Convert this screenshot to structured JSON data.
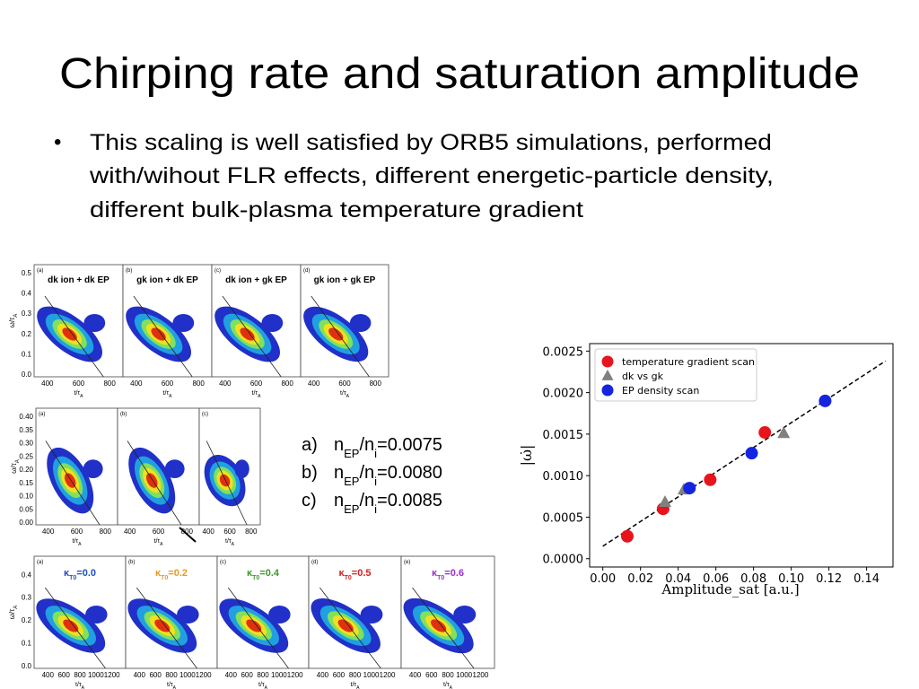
{
  "header": {
    "title": "Chirping rate and saturation amplitude"
  },
  "bullet": {
    "marker": "•",
    "lines": [
      "This scaling is well satisfied by ORB5 simulations, performed",
      "with/wihout FLR effects, different energetic-particle density,",
      "different bulk-plasma temperature gradient"
    ]
  },
  "figure_rows": [
    {
      "ylabel": "ω/τ",
      "ylabel_sub": "A",
      "xlabel": "t/τ",
      "xlabel_sub": "A",
      "yticks": [
        "0.0",
        "0.1",
        "0.2",
        "0.3",
        "0.4",
        "0.5"
      ],
      "xticks": [
        "400",
        "600",
        "800"
      ],
      "panels": [
        {
          "letter": "(a)",
          "title": "dk ion + dk EP",
          "color": "#1f4fbf"
        },
        {
          "letter": "(b)",
          "title": "gk ion + dk EP",
          "color": "#e89a1a"
        },
        {
          "letter": "(c)",
          "title": "dk ion + gk EP",
          "color": "#3c9a2a"
        },
        {
          "letter": "(d)",
          "title": "gk ion + gk EP",
          "color": "#d62020"
        }
      ]
    },
    {
      "ylabel": "ω/τ",
      "ylabel_sub": "A",
      "xlabel": "t/τ",
      "xlabel_sub": "A",
      "yticks": [
        "0.00",
        "0.05",
        "0.10",
        "0.15",
        "0.20",
        "0.25",
        "0.30",
        "0.35",
        "0.40"
      ],
      "xticks": [
        "400",
        "600",
        "800"
      ],
      "panels": [
        {
          "letter": "(a)"
        },
        {
          "letter": "(b)"
        },
        {
          "letter": "(c)"
        }
      ]
    },
    {
      "ylabel": "ω/τ",
      "ylabel_sub": "A",
      "xlabel": "t/τ",
      "xlabel_sub": "A",
      "yticks": [
        "0.0",
        "0.1",
        "0.2",
        "0.3",
        "0.4"
      ],
      "xticks": [
        "400",
        "600",
        "800",
        "1000",
        "1200"
      ],
      "panels": [
        {
          "letter": "(a)",
          "kappa": "κ",
          "sub": "T0",
          "title": "=0.0",
          "color": "#1f4fbf"
        },
        {
          "letter": "(b)",
          "kappa": "κ",
          "sub": "T0",
          "title": "=0.2",
          "color": "#e89a1a"
        },
        {
          "letter": "(c)",
          "kappa": "κ",
          "sub": "T0",
          "title": "=0.4",
          "color": "#3c9a2a"
        },
        {
          "letter": "(d)",
          "kappa": "κ",
          "sub": "T0",
          "title": "=0.5",
          "color": "#d62020"
        },
        {
          "letter": "(e)",
          "kappa": "κ",
          "sub": "T0",
          "title": "=0.6",
          "color": "#9a30c8"
        }
      ]
    }
  ],
  "density_list": [
    {
      "marker": "a)",
      "n1": "n",
      "sub1": "EP",
      "n2": "/n",
      "sub2": "i",
      "value": "=0.0075"
    },
    {
      "marker": "b)",
      "n1": "n",
      "sub1": "EP",
      "n2": "/n",
      "sub2": "i",
      "value": "=0.0080"
    },
    {
      "marker": "c)",
      "n1": "n",
      "sub1": "EP",
      "n2": "/n",
      "sub2": "i",
      "value": "=0.0085"
    }
  ],
  "chart_data": {
    "type": "scatter",
    "xlabel": "Amplitude_sat [a.u.]",
    "ylabel": "|ω̇|",
    "xlim": [
      -0.007,
      0.154
    ],
    "ylim": [
      -0.0001,
      0.00259
    ],
    "xticks": [
      {
        "value": 0,
        "label": "0.00"
      },
      {
        "value": 0.02,
        "label": "0.02"
      },
      {
        "value": 0.04,
        "label": "0.04"
      },
      {
        "value": 0.06,
        "label": "0.06"
      },
      {
        "value": 0.08,
        "label": "0.08"
      },
      {
        "value": 0.1,
        "label": "0.10"
      },
      {
        "value": 0.12,
        "label": "0.12"
      },
      {
        "value": 0.14,
        "label": "0.14"
      }
    ],
    "yticks": [
      {
        "value": 0,
        "label": "0.0000"
      },
      {
        "value": 0.0005,
        "label": "0.0005"
      },
      {
        "value": 0.001,
        "label": "0.0010"
      },
      {
        "value": 0.0015,
        "label": "0.0015"
      },
      {
        "value": 0.002,
        "label": "0.0020"
      },
      {
        "value": 0.0025,
        "label": "0.0025"
      }
    ],
    "legend": "upper left",
    "series": [
      {
        "name": "temperature gradient scan",
        "color": "#e8141c",
        "marker": "circle",
        "x": [
          0.013,
          0.032,
          0.057,
          0.086
        ],
        "values": [
          0.00027,
          0.0006,
          0.00095,
          0.00152
        ]
      },
      {
        "name": "dk vs gk",
        "color": "#808080",
        "marker": "triangle",
        "x": [
          0.033,
          0.043,
          0.096
        ],
        "values": [
          0.00068,
          0.00083,
          0.00151
        ]
      },
      {
        "name": "EP density scan",
        "color": "#1424e0",
        "marker": "circle",
        "x": [
          0.046,
          0.079,
          0.118
        ],
        "values": [
          0.00085,
          0.00127,
          0.0019
        ]
      }
    ],
    "fit": {
      "x": [
        0.0,
        0.15
      ],
      "values": [
        0.00015,
        0.00238
      ]
    }
  }
}
